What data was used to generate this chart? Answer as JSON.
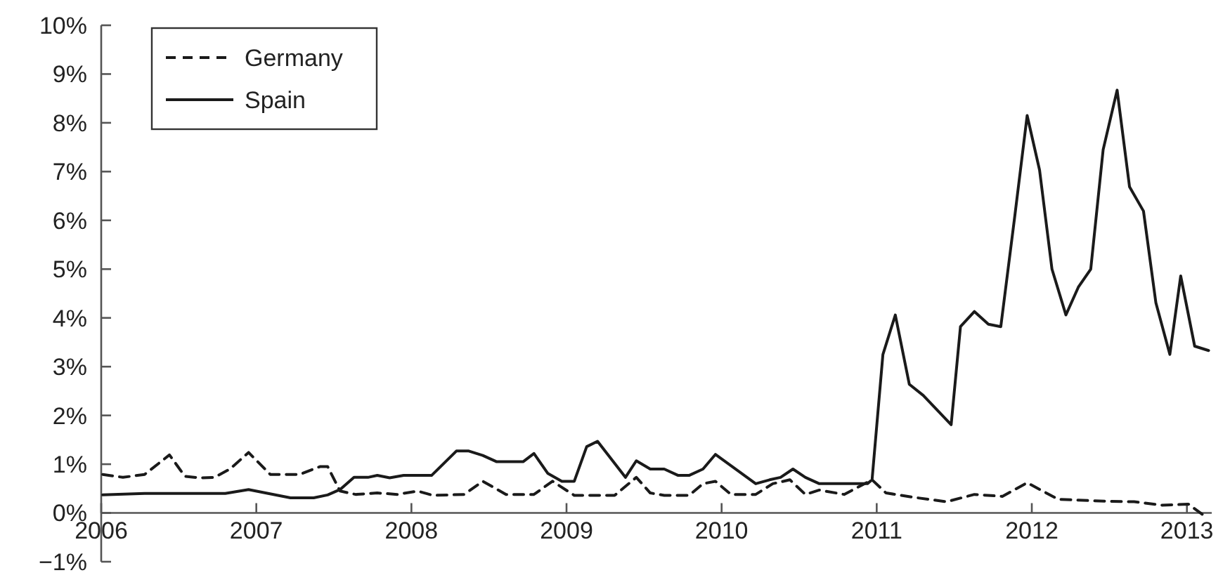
{
  "chart_data": {
    "type": "line",
    "xlim": [
      2006,
      2013.16
    ],
    "xticks": [
      2006,
      2007,
      2008,
      2009,
      2010,
      2011,
      2012,
      2013
    ],
    "ylim": [
      -1,
      10
    ],
    "yticks": [
      {
        "value": -1,
        "label": "−1%"
      },
      {
        "value": 0,
        "label": "0%"
      },
      {
        "value": 1,
        "label": "1%"
      },
      {
        "value": 2,
        "label": "2%"
      },
      {
        "value": 3,
        "label": "3%"
      },
      {
        "value": 4,
        "label": "4%"
      },
      {
        "value": 5,
        "label": "5%"
      },
      {
        "value": 6,
        "label": "6%"
      },
      {
        "value": 7,
        "label": "7%"
      },
      {
        "value": 8,
        "label": "8%"
      },
      {
        "value": 9,
        "label": "9%"
      },
      {
        "value": 10,
        "label": "10%"
      }
    ],
    "grid": false,
    "legend": "top left",
    "marker": "none",
    "series": [
      {
        "name": "Germany",
        "color": "#1a1a1a",
        "line_style": "dashed",
        "x": [
          2006.01,
          2006.14,
          2006.28,
          2006.44,
          2006.54,
          2006.64,
          2006.73,
          2006.83,
          2006.95,
          2007.09,
          2007.28,
          2007.41,
          2007.46,
          2007.54,
          2007.64,
          2007.78,
          2007.91,
          2008.04,
          2008.14,
          2008.34,
          2008.46,
          2008.61,
          2008.79,
          2008.91,
          2009.05,
          2009.31,
          2009.45,
          2009.54,
          2009.63,
          2009.79,
          2009.88,
          2009.96,
          2010.06,
          2010.22,
          2010.33,
          2010.44,
          2010.54,
          2010.63,
          2010.79,
          2010.97,
          2011.06,
          2011.24,
          2011.45,
          2011.63,
          2011.81,
          2011.97,
          2012.17,
          2012.48,
          2012.66,
          2012.84,
          2013.01,
          2013.13
        ],
        "values": [
          0.79,
          0.73,
          0.79,
          1.19,
          0.75,
          0.72,
          0.73,
          0.9,
          1.24,
          0.79,
          0.79,
          0.95,
          0.95,
          0.45,
          0.38,
          0.41,
          0.38,
          0.45,
          0.36,
          0.38,
          0.65,
          0.38,
          0.38,
          0.65,
          0.36,
          0.36,
          0.73,
          0.41,
          0.36,
          0.36,
          0.6,
          0.65,
          0.38,
          0.38,
          0.6,
          0.68,
          0.38,
          0.47,
          0.38,
          0.68,
          0.41,
          0.32,
          0.23,
          0.38,
          0.34,
          0.62,
          0.28,
          0.24,
          0.23,
          0.16,
          0.18,
          -0.1
        ]
      },
      {
        "name": "Spain",
        "color": "#1a1a1a",
        "line_style": "solid",
        "x": [
          2006.01,
          2006.28,
          2006.8,
          2006.95,
          2007.22,
          2007.37,
          2007.46,
          2007.54,
          2007.63,
          2007.72,
          2007.78,
          2007.86,
          2007.95,
          2008.13,
          2008.29,
          2008.37,
          2008.46,
          2008.55,
          2008.72,
          2008.79,
          2008.88,
          2008.97,
          2009.05,
          2009.13,
          2009.2,
          2009.38,
          2009.45,
          2009.54,
          2009.63,
          2009.72,
          2009.79,
          2009.88,
          2009.96,
          2010.22,
          2010.31,
          2010.38,
          2010.46,
          2010.54,
          2010.63,
          2010.94,
          2010.97,
          2011.04,
          2011.12,
          2011.21,
          2011.3,
          2011.48,
          2011.54,
          2011.63,
          2011.72,
          2011.8,
          2011.89,
          2011.97,
          2012.05,
          2012.13,
          2012.22,
          2012.3,
          2012.38,
          2012.46,
          2012.55,
          2012.63,
          2012.72,
          2012.8,
          2012.89,
          2012.96,
          2013.05,
          2013.14
        ],
        "values": [
          0.37,
          0.4,
          0.4,
          0.48,
          0.31,
          0.31,
          0.37,
          0.48,
          0.73,
          0.73,
          0.77,
          0.72,
          0.77,
          0.77,
          1.27,
          1.27,
          1.18,
          1.05,
          1.05,
          1.22,
          0.81,
          0.65,
          0.65,
          1.36,
          1.47,
          0.73,
          1.07,
          0.9,
          0.9,
          0.77,
          0.77,
          0.9,
          1.2,
          0.6,
          0.68,
          0.73,
          0.9,
          0.73,
          0.6,
          0.6,
          0.68,
          3.25,
          4.06,
          2.64,
          2.41,
          1.81,
          3.82,
          4.13,
          3.87,
          3.82,
          6.08,
          8.15,
          7.03,
          5.0,
          4.06,
          4.63,
          5.0,
          7.45,
          8.67,
          6.69,
          6.19,
          4.31,
          3.25,
          4.86,
          3.42,
          3.33
        ]
      }
    ]
  }
}
